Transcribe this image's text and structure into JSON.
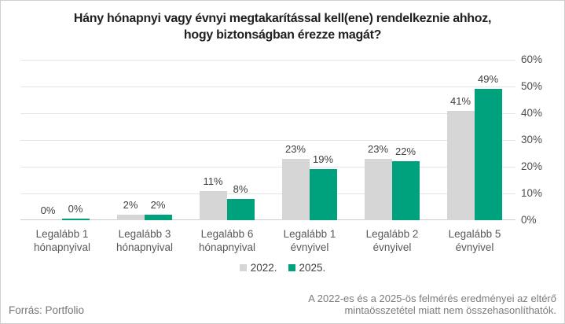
{
  "title": "Hány hónapnyi vagy évnyi megtakarítással kell(ene) rendelkeznie ahhoz, hogy biztonságban érezze magát?",
  "chart_data": {
    "type": "bar",
    "categories": [
      "Legalább 1 hónapnyival",
      "Legalább 3 hónapnyival",
      "Legalább 6 hónapnyival",
      "Legalább 1 évnyivel",
      "Legalább 2 évnyivel",
      "Legalább 5 évnyivel"
    ],
    "series": [
      {
        "name": "2022.",
        "color": "#d6d6d6",
        "values": [
          0,
          2,
          11,
          23,
          23,
          41
        ]
      },
      {
        "name": "2025.",
        "color": "#00a27d",
        "values": [
          0,
          2,
          8,
          19,
          22,
          49
        ]
      }
    ],
    "value_suffix": "%",
    "data_labels": true,
    "title": "Hány hónapnyi vagy évnyi megtakarítással kell(ene) rendelkeznie ahhoz, hogy biztonságban érezze magát?",
    "xlabel": "",
    "ylabel": "",
    "ylim": [
      0,
      60
    ],
    "yticks": [
      "0%",
      "10%",
      "20%",
      "30%",
      "40%",
      "50%",
      "60%"
    ],
    "grid": true,
    "y_axis_side": "right",
    "legend_position": "bottom"
  },
  "footer": {
    "source": "Forrás: Portfolio",
    "note_line1": "A 2022-es és a 2025-ös felmérés eredményei az eltérő",
    "note_line2": "mintaösszetétel miatt nem összehasonlíthatók."
  },
  "colors": {
    "series_2022": "#d6d6d6",
    "series_2025": "#00a27d",
    "gridline": "#e4e4e4",
    "axis_line": "#cccccc",
    "title_text": "#1f1f1f",
    "value_label": "#404040",
    "category_label": "#595959",
    "ytick_label": "#4d4d4d",
    "footer_text": "#757575"
  }
}
